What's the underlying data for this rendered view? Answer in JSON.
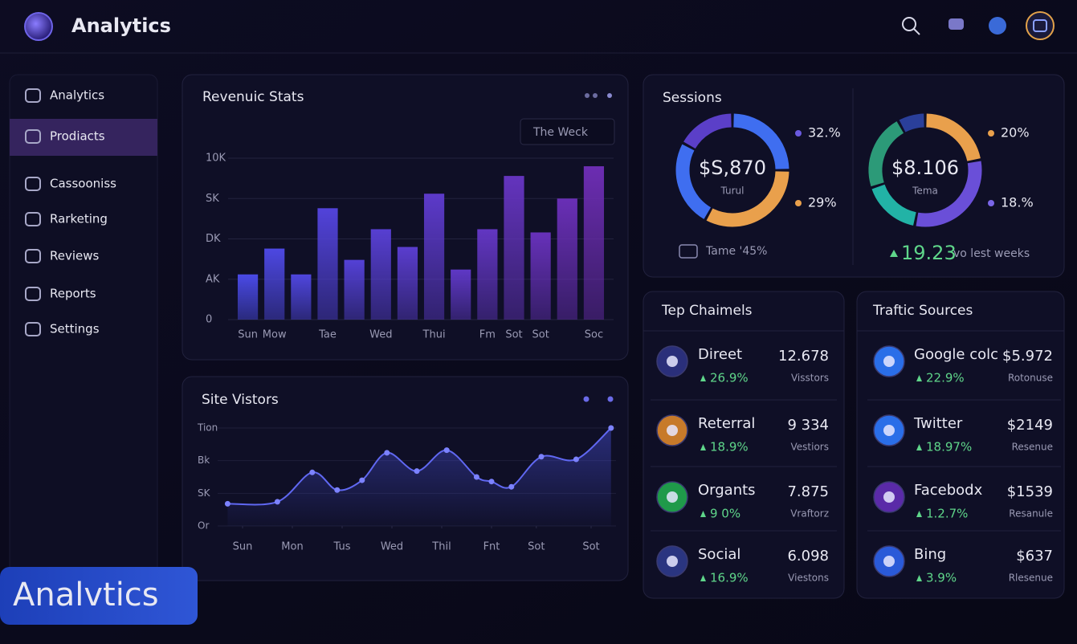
{
  "header": {
    "title": "Analytics"
  },
  "sidebar": {
    "items": [
      "Analytics",
      "Prodiacts",
      "Cassooniss",
      "Rarketing",
      "Reviews",
      "Reports",
      "Settings"
    ],
    "active": 1
  },
  "revenue": {
    "title": "Revenuic Stats",
    "filter": "The Weck",
    "chart_data": {
      "type": "bar",
      "categories": [
        "Sun",
        "Mow",
        null,
        "Tae",
        null,
        "Wed",
        null,
        "Thui",
        null,
        "Fm",
        "Sot",
        "Sot",
        null,
        "Soc"
      ],
      "values": [
        2800,
        4400,
        2800,
        6900,
        3700,
        5600,
        4500,
        7800,
        3100,
        5600,
        8900,
        5400,
        7500,
        9500
      ],
      "colors": [
        "#4a4ae6",
        "#6c2db2"
      ],
      "ylim": [
        0,
        10000
      ],
      "yticks": [
        0,
        {
          "value": 2500,
          "label": "AK"
        },
        {
          "value": 5000,
          "label": "DK"
        },
        {
          "value": 7500,
          "label": "SK"
        },
        {
          "value": 10000,
          "label": "10K"
        }
      ],
      "grid": true
    }
  },
  "visitors": {
    "title": "Site Vistors",
    "chart_data": {
      "type": "line",
      "x": [
        0.2,
        1.2,
        1.9,
        2.4,
        2.9,
        3.4,
        4.0,
        4.6,
        5.2,
        5.5,
        5.9,
        6.5,
        7.2,
        7.9
      ],
      "values": [
        3400,
        3700,
        8200,
        5500,
        7000,
        11200,
        8400,
        11600,
        7500,
        6800,
        6000,
        10600,
        10200,
        15000
      ],
      "color": "#6068f2",
      "xlim": [
        0,
        8
      ],
      "xticks": [
        {
          "value": 0.5,
          "label": "Sun"
        },
        {
          "value": 1.5,
          "label": "Mon"
        },
        {
          "value": 2.5,
          "label": "Tus"
        },
        {
          "value": 3.5,
          "label": "Wed"
        },
        {
          "value": 4.5,
          "label": "Thil"
        },
        {
          "value": 5.5,
          "label": "Fnt"
        },
        {
          "value": 6.4,
          "label": "Sot"
        },
        {
          "value": 7.5,
          "label": "Sot"
        }
      ],
      "ylim": [
        0,
        15000
      ],
      "yticks": [
        {
          "value": 0,
          "label": "Or"
        },
        {
          "value": 5000,
          "label": "SK"
        },
        {
          "value": 10000,
          "label": "Bk"
        },
        {
          "value": 15000,
          "label": "Tion"
        }
      ],
      "grid": true
    }
  },
  "sessions": {
    "title": "Sessions",
    "donuts": [
      {
        "chart_data": {
          "type": "pie",
          "donut": true,
          "values": [
            25,
            33,
            25,
            17
          ],
          "colors": [
            "#3f6ef0",
            "#e9a04c",
            "#3f6ef0",
            "#5b3fc8"
          ]
        },
        "value": "$S,870",
        "label": "Turul",
        "callouts": [
          "32.%",
          "29%"
        ]
      },
      {
        "chart_data": {
          "type": "pie",
          "donut": true,
          "values": [
            22,
            31,
            17,
            22,
            8
          ],
          "colors": [
            "#e9a04c",
            "#6a4fd8",
            "#22b3a6",
            "#2c9a78",
            "#2a3f9a"
          ]
        },
        "value": "$8.106",
        "label": "Tema",
        "callouts": [
          "20%",
          "18.%"
        ]
      }
    ],
    "footer": {
      "left": "Tame '45%",
      "change": "19.23",
      "note": "vo lest weeks"
    }
  },
  "channels": {
    "title": "Tep Chaimels",
    "rows": [
      {
        "name": "Direet",
        "value": "12.678",
        "unit": "Visstors",
        "change": "26.9%"
      },
      {
        "name": "Reterral",
        "value": "9 334",
        "unit": "Vestiors",
        "change": "18.9%"
      },
      {
        "name": "Organts",
        "value": "7.875",
        "unit": "Vraftorz",
        "change": "9 0%"
      },
      {
        "name": "Social",
        "value": "6.098",
        "unit": "Viestons",
        "change": "16.9%"
      }
    ]
  },
  "traffic": {
    "title": "Traftic Sources",
    "rows": [
      {
        "name": "Google colc",
        "value": "$5.972",
        "unit": "Rotonuse",
        "change": "22.9%"
      },
      {
        "name": "Twitter",
        "value": "$2149",
        "unit": "Resenue",
        "change": "18.97%"
      },
      {
        "name": "Facebodx",
        "value": "$1539",
        "unit": "Resanule",
        "change": "1.2.7%"
      },
      {
        "name": "Bing",
        "value": "$637",
        "unit": "Rlesenue",
        "change": "3.9%"
      }
    ]
  },
  "badge": "Analvtics"
}
